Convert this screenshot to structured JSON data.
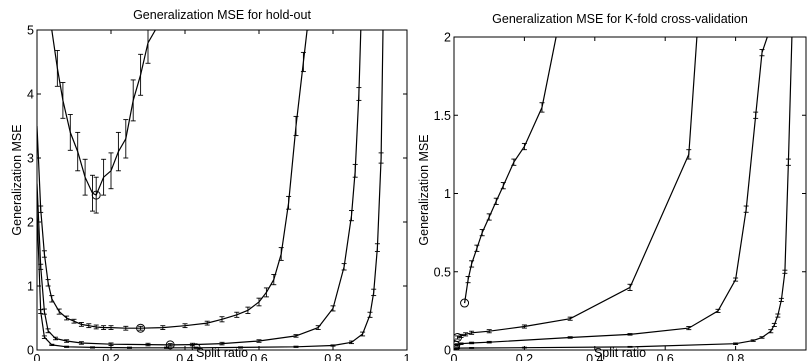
{
  "chart_data": [
    {
      "type": "line",
      "title": "Generalization MSE for hold-out",
      "xlabel": "Split ratio",
      "ylabel": "Generalization MSE",
      "xlim": [
        0,
        1
      ],
      "ylim": [
        0,
        5
      ],
      "xticks": [
        "0",
        "0.2",
        "0.4",
        "0.6",
        "0.8",
        "1"
      ],
      "yticks": [
        "0",
        "1",
        "2",
        "3",
        "4",
        "5"
      ],
      "grid": false,
      "series": [
        {
          "x": [
            0.04,
            0.055,
            0.07,
            0.09,
            0.11,
            0.13,
            0.15,
            0.16,
            0.18,
            0.2,
            0.22,
            0.24,
            0.26,
            0.28,
            0.3,
            0.32
          ],
          "y": [
            5.0,
            4.4,
            3.9,
            3.4,
            3.1,
            2.7,
            2.45,
            2.42,
            2.7,
            2.8,
            3.1,
            3.3,
            3.9,
            4.3,
            4.8,
            5.0
          ],
          "err": [
            0,
            0.28,
            0.28,
            0.28,
            0.3,
            0.28,
            0.28,
            0.28,
            0.28,
            0.28,
            0.3,
            0.3,
            0.32,
            0.32,
            0.32,
            0
          ],
          "min_marker": [
            0.16,
            2.42
          ]
        },
        {
          "x": [
            0.0,
            0.01,
            0.02,
            0.03,
            0.04,
            0.06,
            0.08,
            0.1,
            0.12,
            0.14,
            0.16,
            0.18,
            0.2,
            0.24,
            0.28,
            0.34,
            0.4,
            0.46,
            0.5,
            0.54,
            0.57,
            0.6,
            0.62,
            0.64,
            0.66,
            0.68,
            0.7,
            0.72,
            0.73,
            0.735
          ],
          "y": [
            3.5,
            2.2,
            1.5,
            1.05,
            0.8,
            0.6,
            0.5,
            0.45,
            0.4,
            0.38,
            0.36,
            0.35,
            0.35,
            0.34,
            0.34,
            0.35,
            0.38,
            0.42,
            0.48,
            0.55,
            0.62,
            0.75,
            0.9,
            1.1,
            1.5,
            2.3,
            3.5,
            4.5,
            5.0,
            5.0
          ],
          "err": [
            0,
            0.05,
            0.05,
            0.05,
            0.05,
            0.04,
            0.03,
            0.03,
            0.03,
            0.03,
            0.03,
            0.03,
            0.03,
            0.03,
            0.03,
            0.03,
            0.03,
            0.03,
            0.04,
            0.04,
            0.05,
            0.06,
            0.07,
            0.08,
            0.1,
            0.1,
            0.15,
            0.15,
            0,
            0
          ],
          "min_marker": [
            0.28,
            0.34
          ]
        },
        {
          "x": [
            0.0,
            0.01,
            0.02,
            0.03,
            0.05,
            0.08,
            0.12,
            0.2,
            0.3,
            0.36,
            0.42,
            0.5,
            0.6,
            0.7,
            0.76,
            0.8,
            0.83,
            0.85,
            0.86,
            0.87,
            0.875
          ],
          "y": [
            2.6,
            1.3,
            0.6,
            0.3,
            0.18,
            0.14,
            0.11,
            0.09,
            0.085,
            0.08,
            0.085,
            0.1,
            0.14,
            0.22,
            0.35,
            0.65,
            1.3,
            2.1,
            2.8,
            4.0,
            5.0
          ],
          "err": [
            0,
            0.04,
            0.04,
            0.03,
            0.02,
            0.02,
            0.02,
            0.02,
            0.02,
            0.02,
            0.02,
            0.02,
            0.02,
            0.02,
            0.03,
            0.04,
            0.05,
            0.08,
            0.1,
            0.1,
            0
          ],
          "min_marker": [
            0.36,
            0.08
          ]
        },
        {
          "x": [
            0.0,
            0.01,
            0.02,
            0.04,
            0.08,
            0.15,
            0.25,
            0.35,
            0.43,
            0.55,
            0.7,
            0.8,
            0.85,
            0.88,
            0.9,
            0.91,
            0.92,
            0.93,
            0.935
          ],
          "y": [
            2.2,
            0.6,
            0.2,
            0.08,
            0.05,
            0.04,
            0.035,
            0.035,
            0.035,
            0.04,
            0.05,
            0.07,
            0.12,
            0.25,
            0.55,
            0.9,
            1.6,
            3.0,
            5.0
          ],
          "err": [
            0,
            0.03,
            0.02,
            0.01,
            0.01,
            0.01,
            0.01,
            0.01,
            0.01,
            0.01,
            0.01,
            0.01,
            0.02,
            0.03,
            0.04,
            0.05,
            0.06,
            0.08,
            0
          ],
          "min_marker": [
            0.43,
            0.035
          ]
        }
      ]
    },
    {
      "type": "line",
      "title": "Generalization MSE for K-fold cross-validation",
      "xlabel": "Split ratio",
      "ylabel": "Generalization MSE",
      "xlim": [
        0,
        1
      ],
      "ylim": [
        0,
        2
      ],
      "xticks": [
        "0",
        "0.2",
        "0.4",
        "0.6",
        "0.8"
      ],
      "yticks": [
        "0",
        "0.5",
        "1",
        "1.5",
        "2"
      ],
      "grid": false,
      "series": [
        {
          "x": [
            0.03,
            0.04,
            0.05,
            0.065,
            0.08,
            0.1,
            0.12,
            0.14,
            0.17,
            0.2,
            0.25,
            0.29
          ],
          "y": [
            0.3,
            0.45,
            0.55,
            0.65,
            0.75,
            0.85,
            0.95,
            1.05,
            1.2,
            1.3,
            1.55,
            2.0
          ],
          "err": [
            0,
            0.02,
            0.02,
            0.02,
            0.02,
            0.02,
            0.02,
            0.02,
            0.02,
            0.02,
            0.03,
            0
          ],
          "min_marker": [
            0.03,
            0.3
          ]
        },
        {
          "x": [
            0.01,
            0.02,
            0.033,
            0.05,
            0.1,
            0.2,
            0.33,
            0.5,
            0.667,
            0.69
          ],
          "y": [
            0.08,
            0.09,
            0.1,
            0.11,
            0.12,
            0.15,
            0.2,
            0.4,
            1.25,
            2.0
          ],
          "err": [
            0.01,
            0.01,
            0.01,
            0.01,
            0.01,
            0.01,
            0.01,
            0.02,
            0.03,
            0
          ],
          "min_marker": [
            0.01,
            0.08
          ]
        },
        {
          "x": [
            0.005,
            0.01,
            0.02,
            0.05,
            0.1,
            0.33,
            0.5,
            0.667,
            0.75,
            0.8,
            0.83,
            0.857,
            0.875,
            0.89
          ],
          "y": [
            0.03,
            0.035,
            0.04,
            0.045,
            0.05,
            0.08,
            0.1,
            0.14,
            0.25,
            0.45,
            0.9,
            1.5,
            1.9,
            2.0
          ],
          "err": [
            0.005,
            0.005,
            0.005,
            0.005,
            0.005,
            0.005,
            0.005,
            0.01,
            0.01,
            0.01,
            0.02,
            0.02,
            0.02,
            0
          ],
          "min_marker": [
            0.005,
            0.03
          ]
        },
        {
          "x": [
            0.002,
            0.01,
            0.05,
            0.2,
            0.5,
            0.8,
            0.85,
            0.875,
            0.9,
            0.91,
            0.92,
            0.93,
            0.94,
            0.95,
            0.96
          ],
          "y": [
            0.01,
            0.012,
            0.013,
            0.015,
            0.02,
            0.04,
            0.06,
            0.08,
            0.12,
            0.16,
            0.22,
            0.32,
            0.5,
            1.2,
            2.0
          ],
          "err": [
            0.003,
            0.003,
            0.003,
            0.003,
            0.003,
            0.005,
            0.005,
            0.005,
            0.01,
            0.01,
            0.01,
            0.01,
            0.01,
            0.02,
            0
          ],
          "min_marker": [
            0.002,
            0.01
          ]
        }
      ]
    }
  ]
}
